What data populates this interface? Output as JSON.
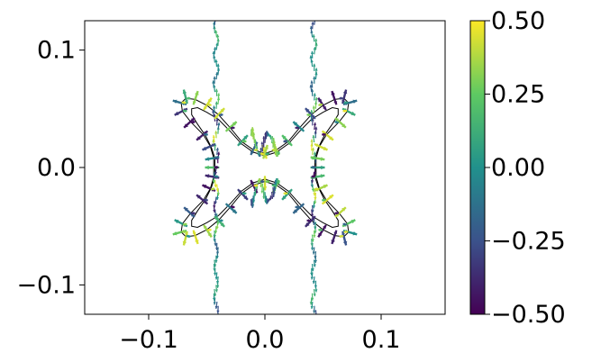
{
  "chart_data": {
    "type": "quiver",
    "title": "",
    "xlabel": "",
    "ylabel": "",
    "xlim": [
      -0.155,
      0.155
    ],
    "ylim": [
      -0.125,
      0.125
    ],
    "x_ticks": [
      {
        "value": -0.1,
        "label": "−0.1"
      },
      {
        "value": 0.0,
        "label": "0.0"
      },
      {
        "value": 0.1,
        "label": "0.1"
      }
    ],
    "y_ticks": [
      {
        "value": 0.1,
        "label": "0.1"
      },
      {
        "value": 0.0,
        "label": "0.0"
      },
      {
        "value": -0.1,
        "label": "−0.1"
      }
    ],
    "grid": false,
    "colormap": "viridis",
    "colormap_stops": [
      "#440154",
      "#3b528b",
      "#21918c",
      "#5ec962",
      "#fde725"
    ],
    "colorbar": {
      "range": [
        -0.5,
        0.5
      ],
      "ticks": [
        {
          "value": 0.5,
          "label": "0.50"
        },
        {
          "value": 0.25,
          "label": "0.25"
        },
        {
          "value": 0.0,
          "label": "0.00"
        },
        {
          "value": -0.25,
          "label": "−0.25"
        },
        {
          "value": -0.5,
          "label": "−0.50"
        }
      ]
    },
    "vertical_quiver_lines_x": [
      -0.042,
      0.042
    ],
    "vertical_quiver_y_extent": [
      -0.125,
      0.125
    ],
    "arrow_color_scale": 0.5,
    "outer_contour": [
      [
        0.0,
        0.012
      ],
      [
        0.01,
        0.015
      ],
      [
        0.02,
        0.022
      ],
      [
        0.03,
        0.034
      ],
      [
        0.04,
        0.045
      ],
      [
        0.05,
        0.053
      ],
      [
        0.06,
        0.058
      ],
      [
        0.068,
        0.059
      ],
      [
        0.072,
        0.055
      ],
      [
        0.071,
        0.048
      ],
      [
        0.064,
        0.039
      ],
      [
        0.053,
        0.028
      ],
      [
        0.047,
        0.018
      ],
      [
        0.044,
        0.008
      ],
      [
        0.044,
        0.0
      ],
      [
        0.044,
        -0.008
      ],
      [
        0.047,
        -0.018
      ],
      [
        0.053,
        -0.028
      ],
      [
        0.064,
        -0.039
      ],
      [
        0.071,
        -0.048
      ],
      [
        0.072,
        -0.055
      ],
      [
        0.068,
        -0.059
      ],
      [
        0.06,
        -0.058
      ],
      [
        0.05,
        -0.053
      ],
      [
        0.04,
        -0.045
      ],
      [
        0.03,
        -0.034
      ],
      [
        0.02,
        -0.022
      ],
      [
        0.01,
        -0.015
      ],
      [
        0.0,
        -0.012
      ],
      [
        -0.01,
        -0.015
      ],
      [
        -0.02,
        -0.022
      ],
      [
        -0.03,
        -0.034
      ],
      [
        -0.04,
        -0.045
      ],
      [
        -0.05,
        -0.053
      ],
      [
        -0.06,
        -0.058
      ],
      [
        -0.068,
        -0.059
      ],
      [
        -0.072,
        -0.055
      ],
      [
        -0.071,
        -0.048
      ],
      [
        -0.064,
        -0.039
      ],
      [
        -0.053,
        -0.028
      ],
      [
        -0.047,
        -0.018
      ],
      [
        -0.044,
        -0.008
      ],
      [
        -0.044,
        0.0
      ],
      [
        -0.044,
        0.008
      ],
      [
        -0.047,
        0.018
      ],
      [
        -0.053,
        0.028
      ],
      [
        -0.064,
        0.039
      ],
      [
        -0.071,
        0.048
      ],
      [
        -0.072,
        0.055
      ],
      [
        -0.068,
        0.059
      ],
      [
        -0.06,
        0.058
      ],
      [
        -0.05,
        0.053
      ],
      [
        -0.04,
        0.045
      ],
      [
        -0.03,
        0.034
      ],
      [
        -0.02,
        0.022
      ],
      [
        -0.01,
        0.015
      ],
      [
        0.0,
        0.012
      ]
    ],
    "inner_contour": [
      [
        0.0,
        0.01
      ],
      [
        0.01,
        0.013
      ],
      [
        0.02,
        0.02
      ],
      [
        0.03,
        0.031
      ],
      [
        0.04,
        0.041
      ],
      [
        0.05,
        0.047
      ],
      [
        0.058,
        0.051
      ],
      [
        0.063,
        0.05
      ],
      [
        0.063,
        0.045
      ],
      [
        0.058,
        0.037
      ],
      [
        0.051,
        0.027
      ],
      [
        0.046,
        0.017
      ],
      [
        0.043,
        0.008
      ],
      [
        0.043,
        0.0
      ],
      [
        0.043,
        -0.008
      ],
      [
        0.046,
        -0.017
      ],
      [
        0.051,
        -0.027
      ],
      [
        0.058,
        -0.037
      ],
      [
        0.063,
        -0.045
      ],
      [
        0.063,
        -0.05
      ],
      [
        0.058,
        -0.051
      ],
      [
        0.05,
        -0.047
      ],
      [
        0.04,
        -0.041
      ],
      [
        0.03,
        -0.031
      ],
      [
        0.02,
        -0.02
      ],
      [
        0.01,
        -0.013
      ],
      [
        0.0,
        -0.01
      ],
      [
        -0.01,
        -0.013
      ],
      [
        -0.02,
        -0.02
      ],
      [
        -0.03,
        -0.031
      ],
      [
        -0.04,
        -0.041
      ],
      [
        -0.05,
        -0.047
      ],
      [
        -0.058,
        -0.051
      ],
      [
        -0.063,
        -0.05
      ],
      [
        -0.063,
        -0.045
      ],
      [
        -0.058,
        -0.037
      ],
      [
        -0.051,
        -0.027
      ],
      [
        -0.046,
        -0.017
      ],
      [
        -0.043,
        -0.008
      ],
      [
        -0.043,
        0.0
      ],
      [
        -0.043,
        0.008
      ],
      [
        -0.046,
        0.017
      ],
      [
        -0.051,
        0.027
      ],
      [
        -0.058,
        0.037
      ],
      [
        -0.063,
        0.045
      ],
      [
        -0.063,
        0.05
      ],
      [
        -0.058,
        0.051
      ],
      [
        -0.05,
        0.047
      ],
      [
        -0.04,
        0.041
      ],
      [
        -0.03,
        0.031
      ],
      [
        -0.02,
        0.02
      ],
      [
        -0.01,
        0.013
      ],
      [
        0.0,
        0.01
      ]
    ]
  }
}
